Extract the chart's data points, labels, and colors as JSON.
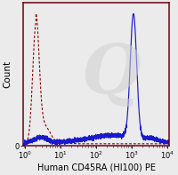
{
  "title": "",
  "xlabel": "Human CD45RA (HI100) PE",
  "ylabel": "Count",
  "xlim_log": [
    -0.05,
    4.05
  ],
  "ylim": [
    0,
    1.08
  ],
  "background_color": "#ebebeb",
  "watermark_color": "#d0d0d0",
  "solid_line_color": "#1a1acc",
  "dashed_line_color": "#8b0000",
  "border_color": "#6b0010",
  "xlabel_fontsize": 7.0,
  "ylabel_fontsize": 7.5,
  "tick_fontsize": 6.0
}
